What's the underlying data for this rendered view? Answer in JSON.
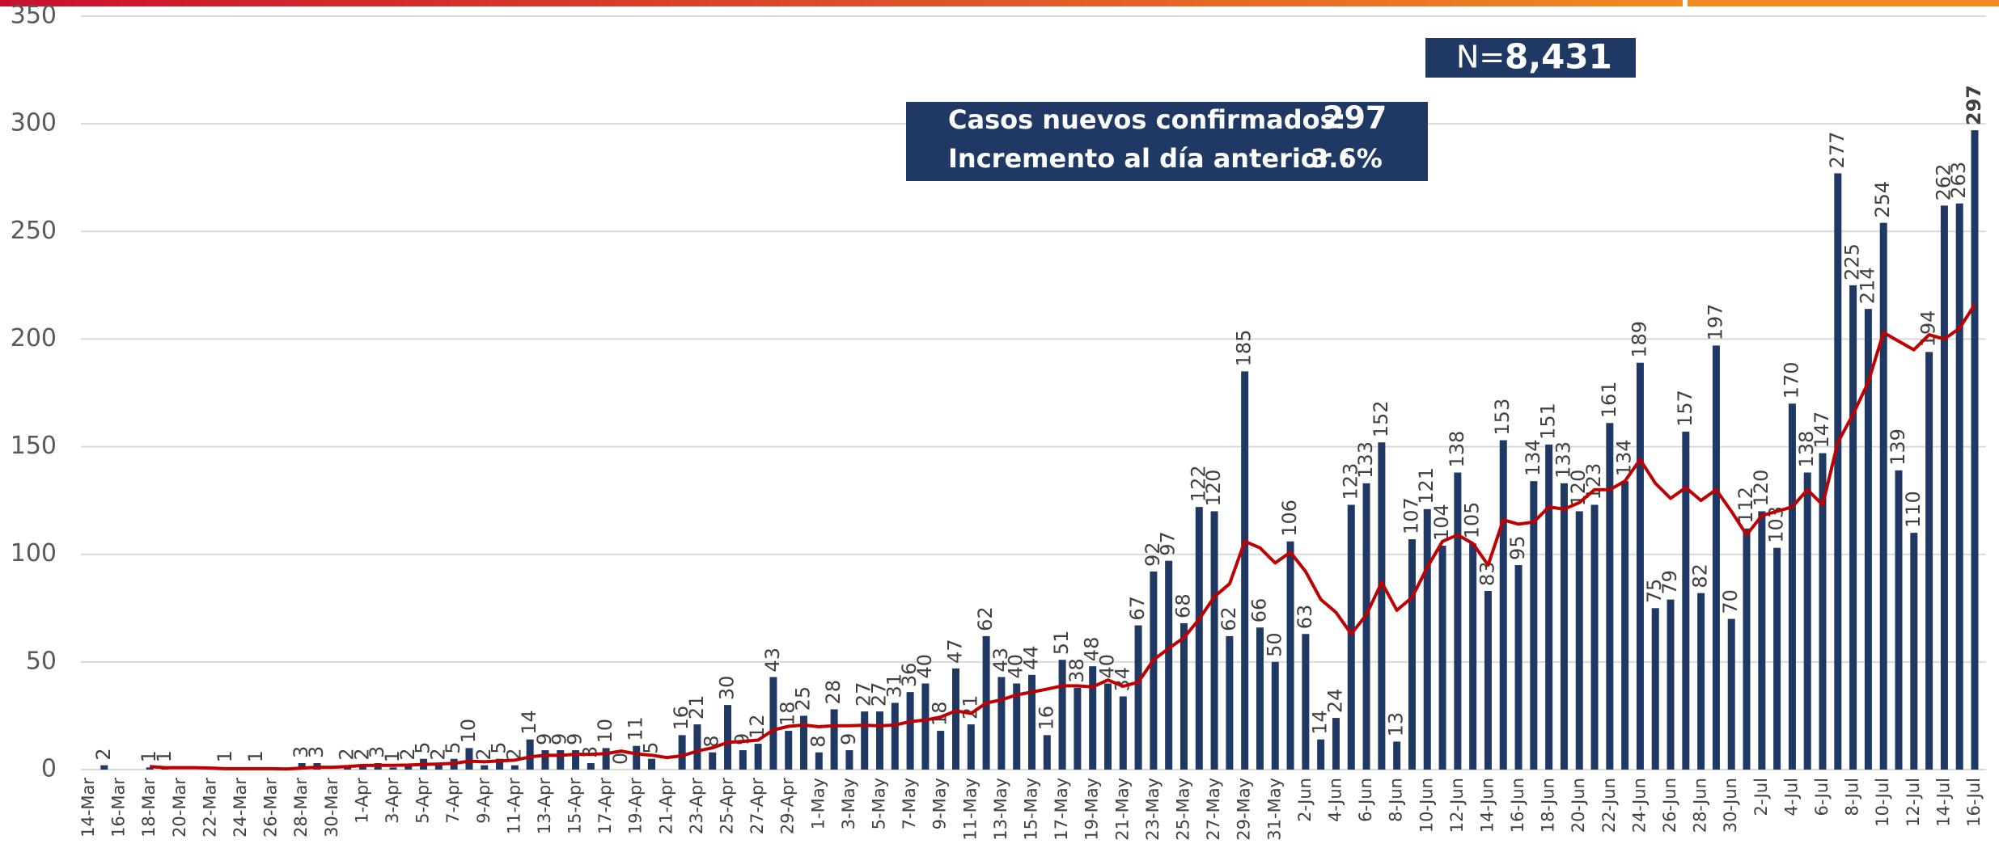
{
  "chart_data": {
    "type": "bar",
    "categories": [
      "14-Mar",
      null,
      "16-Mar",
      null,
      "18-Mar",
      null,
      "20-Mar",
      null,
      "22-Mar",
      null,
      "24-Mar",
      null,
      "26-Mar",
      null,
      "28-Mar",
      null,
      "30-Mar",
      null,
      "1-Apr",
      null,
      "3-Apr",
      null,
      "5-Apr",
      null,
      "7-Apr",
      null,
      "9-Apr",
      null,
      "11-Apr",
      null,
      "13-Apr",
      null,
      "15-Apr",
      null,
      "17-Apr",
      null,
      "19-Apr",
      null,
      "21-Apr",
      null,
      "23-Apr",
      null,
      "25-Apr",
      null,
      "27-Apr",
      null,
      "29-Apr",
      null,
      "1-May",
      null,
      "3-May",
      null,
      "5-May",
      null,
      "7-May",
      null,
      "9-May",
      null,
      "11-May",
      null,
      "13-May",
      null,
      "15-May",
      null,
      "17-May",
      null,
      "19-May",
      null,
      "21-May",
      null,
      "23-May",
      null,
      "25-May",
      null,
      "27-May",
      null,
      "29-May",
      null,
      "31-May",
      null,
      "2-Jun",
      null,
      "4-Jun",
      null,
      "6-Jun",
      null,
      "8-Jun",
      null,
      "10-Jun",
      null,
      "12-Jun",
      null,
      "14-Jun",
      null,
      "16-Jun",
      null,
      "18-Jun",
      null,
      "20-Jun",
      null,
      "22-Jun",
      null,
      "24-Jun",
      null,
      "26-Jun",
      null,
      "28-Jun",
      null,
      "30-Jun",
      null,
      "2-Jul",
      null,
      "4-Jul",
      null,
      "6-Jul",
      null,
      "8-Jul",
      null,
      "10-Jul",
      null,
      "12-Jul",
      null,
      "14-Jul",
      null,
      "16-Jul"
    ],
    "series": [
      {
        "type": "bar",
        "color": "#1f3864",
        "values": [
          null,
          2,
          null,
          null,
          1,
          1,
          null,
          null,
          null,
          1,
          null,
          1,
          null,
          null,
          3,
          3,
          null,
          2,
          2,
          3,
          1,
          2,
          5,
          2,
          5,
          10,
          2,
          5,
          2,
          14,
          9,
          9,
          9,
          3,
          10,
          0,
          11,
          5,
          null,
          16,
          21,
          8,
          30,
          9,
          12,
          43,
          18,
          25,
          8,
          28,
          9,
          27,
          27,
          31,
          36,
          40,
          18,
          47,
          21,
          62,
          43,
          40,
          44,
          16,
          51,
          38,
          48,
          40,
          34,
          67,
          92,
          97,
          68,
          122,
          120,
          62,
          185,
          66,
          50,
          106,
          63,
          14,
          24,
          123,
          133,
          152,
          13,
          107,
          121,
          104,
          138,
          105,
          83,
          153,
          95,
          134,
          151,
          133,
          120,
          123,
          161,
          134,
          189,
          75,
          79,
          157,
          82,
          197,
          70,
          112,
          120,
          103,
          170,
          138,
          147,
          277,
          225,
          214,
          254,
          139,
          110,
          194,
          262,
          263,
          297
        ]
      },
      {
        "type": "line",
        "color": "#c00000",
        "values": [
          null,
          null,
          null,
          null,
          1.4,
          0.9,
          0.9,
          0.9,
          0.7,
          0.4,
          0.4,
          0.4,
          0.4,
          0.3,
          0.7,
          1.1,
          1.1,
          1.4,
          1.9,
          2.0,
          2.0,
          2.1,
          2.4,
          2.6,
          2.9,
          3.9,
          3.6,
          4.0,
          4.4,
          5.9,
          6.7,
          6.6,
          7.1,
          7.1,
          7.4,
          8.6,
          7.3,
          6.7,
          5.6,
          6.4,
          8.6,
          10.1,
          12.6,
          13.1,
          13.7,
          18.4,
          20.1,
          20.7,
          19.9,
          20.4,
          20.4,
          20.6,
          20.3,
          20.7,
          22.3,
          23.0,
          24.4,
          27.3,
          26.1,
          30.9,
          32.4,
          34.7,
          36.0,
          37.4,
          38.9,
          38.9,
          38.4,
          41.6,
          38.7,
          40.6,
          51.0,
          56.3,
          61.3,
          69.9,
          80.3,
          86.3,
          106,
          103,
          96,
          101,
          92,
          79,
          73,
          63,
          72,
          87,
          74,
          80,
          94,
          106,
          109,
          105,
          95,
          116,
          114,
          115,
          122,
          121,
          124,
          130,
          130,
          134,
          144,
          133,
          126,
          131,
          125,
          130,
          120,
          109,
          118,
          120,
          122,
          130,
          123,
          152,
          165,
          180,
          203,
          199,
          195,
          202,
          200,
          205,
          216
        ]
      }
    ],
    "ylim": [
      0,
      350
    ],
    "yticks": [
      0,
      50,
      100,
      150,
      200,
      250,
      300,
      350
    ],
    "grid": true,
    "annotations": [
      {
        "label": "Casos nuevos confirmados:",
        "value": "297"
      },
      {
        "label": "Incremento al día anterior :",
        "value": "3.6%"
      }
    ],
    "total": {
      "label": "N=",
      "value": "8,431"
    }
  }
}
